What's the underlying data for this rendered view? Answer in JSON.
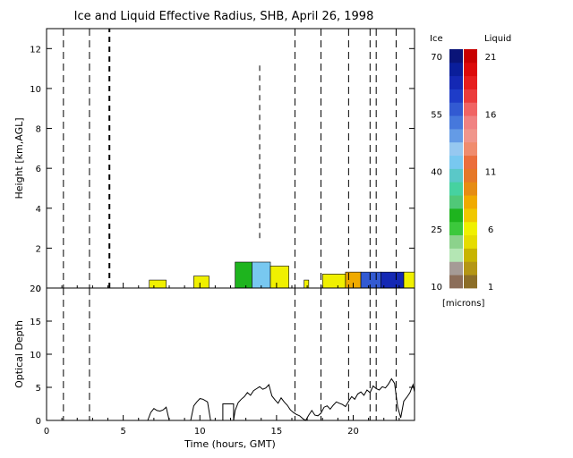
{
  "title": "Ice and Liquid Effective Radius, SHB, April 26, 1998",
  "colors": {
    "ice": [
      "#8c6e5a",
      "#a59b96",
      "#b4e6b4",
      "#8cd28c",
      "#3cc83c",
      "#1eb41e",
      "#50c878",
      "#46d2a0",
      "#5ac8c8",
      "#78c8f0",
      "#96c8f0",
      "#649be6",
      "#4678dc",
      "#325ad2",
      "#1e3cc8",
      "#1428b4",
      "#0a1e9b",
      "#0a1478"
    ],
    "liquid": [
      "#8c6e28",
      "#b49614",
      "#c8b400",
      "#e6dc00",
      "#f0f000",
      "#f0c800",
      "#f0aa00",
      "#e68c14",
      "#e67828",
      "#eb6e3c",
      "#f08c6e",
      "#f0968c",
      "#f08282",
      "#f06464",
      "#eb3c3c",
      "#e61e1e",
      "#dc0a0a",
      "#c80000"
    ]
  },
  "chart_data": [
    {
      "type": "heatmap",
      "title": "Ice and Liquid Effective Radius, SHB, April 26, 1998",
      "xlabel": "",
      "ylabel": "Height [km,AGL]",
      "xlim": [
        0,
        24
      ],
      "ylim": [
        0,
        13
      ],
      "y_ticks": [
        "0",
        "2",
        "4",
        "6",
        "8",
        "10",
        "12"
      ],
      "dashed_lines_hours": [
        1.1,
        2.8,
        16.2,
        17.9,
        19.7,
        21.1,
        21.5,
        22.8
      ],
      "colorbar": {
        "ice_label": "Ice",
        "liquid_label": "Liquid",
        "unit": "[microns]",
        "ice_ticks": [
          "10",
          "25",
          "40",
          "55",
          "70"
        ],
        "liquid_ticks": [
          "1",
          "6",
          "11",
          "16",
          "21"
        ],
        "ice_range": [
          10,
          70
        ],
        "liquid_range": [
          1,
          21
        ]
      },
      "cloud_segments": [
        {
          "start": 6.7,
          "end": 7.8,
          "top_km": 0.4,
          "phase": "liquid",
          "value": 6.5
        },
        {
          "start": 9.6,
          "end": 10.6,
          "top_km": 0.6,
          "phase": "liquid",
          "value": 6.0
        },
        {
          "start": 12.3,
          "end": 13.4,
          "top_km": 1.3,
          "phase": "ice",
          "value": 28
        },
        {
          "start": 13.4,
          "end": 14.6,
          "top_km": 1.3,
          "phase": "ice",
          "value": 42
        },
        {
          "start": 14.6,
          "end": 15.8,
          "top_km": 1.1,
          "phase": "liquid",
          "value": 6.5
        },
        {
          "start": 16.8,
          "end": 17.1,
          "top_km": 0.4,
          "phase": "liquid",
          "value": 6.0
        },
        {
          "start": 18.0,
          "end": 19.5,
          "top_km": 0.7,
          "phase": "liquid",
          "value": 6.0
        },
        {
          "start": 19.5,
          "end": 20.5,
          "top_km": 0.8,
          "phase": "liquid",
          "value": 8.5
        },
        {
          "start": 20.5,
          "end": 21.8,
          "top_km": 0.8,
          "phase": "ice",
          "value": 55
        },
        {
          "start": 21.8,
          "end": 23.3,
          "top_km": 0.8,
          "phase": "ice",
          "value": 62
        },
        {
          "start": 23.3,
          "end": 24.0,
          "top_km": 0.8,
          "phase": "liquid",
          "value": 6.0
        }
      ],
      "precip_columns": [
        {
          "hour": 4.1,
          "bottom_km": 0,
          "top_km": 13
        },
        {
          "hour": 13.9,
          "bottom_km": 2.5,
          "top_km": 11.2
        }
      ]
    },
    {
      "type": "line",
      "xlabel": "Time (hours, GMT)",
      "ylabel": "Optical Depth",
      "xlim": [
        0,
        24
      ],
      "ylim": [
        0,
        20
      ],
      "x_ticks": [
        "0",
        "5",
        "10",
        "15",
        "20"
      ],
      "y_ticks": [
        "0",
        "5",
        "10",
        "15",
        "20"
      ],
      "series": [
        {
          "x": [
            6.6,
            6.8,
            7.0,
            7.2,
            7.4,
            7.6,
            7.8,
            8.0,
            9.4,
            9.6,
            9.8,
            10.0,
            10.2,
            10.5,
            10.7,
            11.5,
            11.5,
            12.2,
            12.2,
            12.3,
            12.5,
            12.7,
            12.9,
            13.1,
            13.3,
            13.5,
            13.7,
            13.9,
            14.1,
            14.3,
            14.5,
            14.7,
            14.9,
            15.1,
            15.3,
            15.5,
            15.7,
            15.9,
            16.1,
            16.3,
            16.5,
            16.7,
            16.9,
            17.1,
            17.3,
            17.5,
            17.7,
            17.9,
            18.1,
            18.3,
            18.5,
            18.7,
            18.9,
            19.1,
            19.3,
            19.5,
            19.7,
            19.9,
            20.1,
            20.3,
            20.5,
            20.7,
            20.9,
            21.1,
            21.3,
            21.5,
            21.7,
            21.9,
            22.1,
            22.3,
            22.5,
            22.7,
            22.9,
            23.1,
            23.3,
            23.5,
            23.7,
            23.9,
            24.0
          ],
          "values": [
            0,
            1.2,
            1.8,
            1.5,
            1.4,
            1.6,
            2.0,
            0,
            0,
            2.2,
            2.8,
            3.3,
            3.2,
            2.8,
            0,
            0,
            2.5,
            2.5,
            0,
            1.5,
            2.7,
            3.2,
            3.6,
            4.2,
            3.8,
            4.5,
            4.8,
            5.1,
            4.7,
            4.9,
            5.4,
            3.7,
            3.1,
            2.6,
            3.4,
            2.8,
            2.3,
            1.6,
            1.2,
            0.9,
            0.7,
            0.3,
            0,
            0.8,
            1.5,
            0.8,
            0.7,
            1.1,
            2.0,
            2.2,
            1.7,
            2.3,
            2.8,
            2.6,
            2.4,
            2.1,
            2.9,
            3.6,
            3.2,
            4.0,
            4.3,
            3.8,
            4.6,
            4.2,
            5.2,
            4.8,
            4.6,
            5.1,
            4.9,
            5.5,
            6.3,
            5.6,
            2.0,
            0.4,
            2.9,
            3.5,
            4.2,
            5.4,
            4.3
          ]
        }
      ]
    }
  ]
}
